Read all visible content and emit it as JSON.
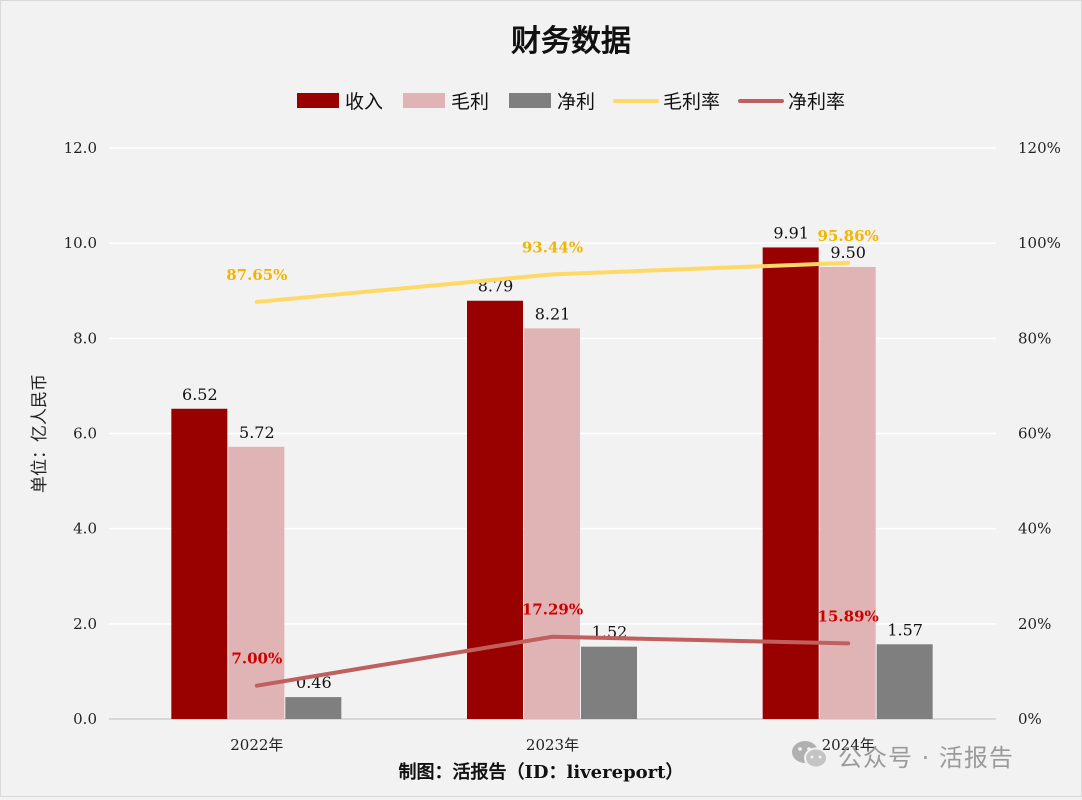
{
  "chart_data": {
    "type": "bar",
    "title": "财务数据",
    "categories": [
      "2022年",
      "2023年",
      "2024年"
    ],
    "ylabel": "单位：亿人民币",
    "ylim": [
      0,
      12
    ],
    "y_ticks": [
      "0.0",
      "2.0",
      "4.0",
      "6.0",
      "8.0",
      "10.0",
      "12.0"
    ],
    "y2lim": [
      0,
      120
    ],
    "y2_ticks": [
      "0%",
      "20%",
      "40%",
      "60%",
      "80%",
      "100%",
      "120%"
    ],
    "grid": true,
    "legend_position": "top",
    "series": [
      {
        "name": "收入",
        "kind": "bar",
        "axis": "left",
        "color": "#990000",
        "values": [
          6.52,
          8.79,
          9.91
        ],
        "labels": [
          "6.52",
          "8.79",
          "9.91"
        ]
      },
      {
        "name": "毛利",
        "kind": "bar",
        "axis": "left",
        "color": "#e0b4b4",
        "values": [
          5.72,
          8.21,
          9.5
        ],
        "labels": [
          "5.72",
          "8.21",
          "9.50"
        ]
      },
      {
        "name": "净利",
        "kind": "bar",
        "axis": "left",
        "color": "#7f7f7f",
        "values": [
          0.46,
          1.52,
          1.57
        ],
        "labels": [
          "0.46",
          "1.52",
          "1.57"
        ]
      },
      {
        "name": "毛利率",
        "kind": "line",
        "axis": "right",
        "color": "#ffd966",
        "label_color": "#f2b600",
        "values": [
          87.65,
          93.44,
          95.86
        ],
        "labels": [
          "87.65%",
          "93.44%",
          "95.86%"
        ]
      },
      {
        "name": "净利率",
        "kind": "line",
        "axis": "right",
        "color": "#c0605e",
        "label_color": "#cc0000",
        "values": [
          7.0,
          17.29,
          15.89
        ],
        "labels": [
          "7.00%",
          "17.29%",
          "15.89%"
        ]
      }
    ]
  },
  "footer": "制图：活报告（ID：livereport）",
  "watermark": {
    "icon": "wechat-icon",
    "text": "公众号 · 活报告"
  }
}
